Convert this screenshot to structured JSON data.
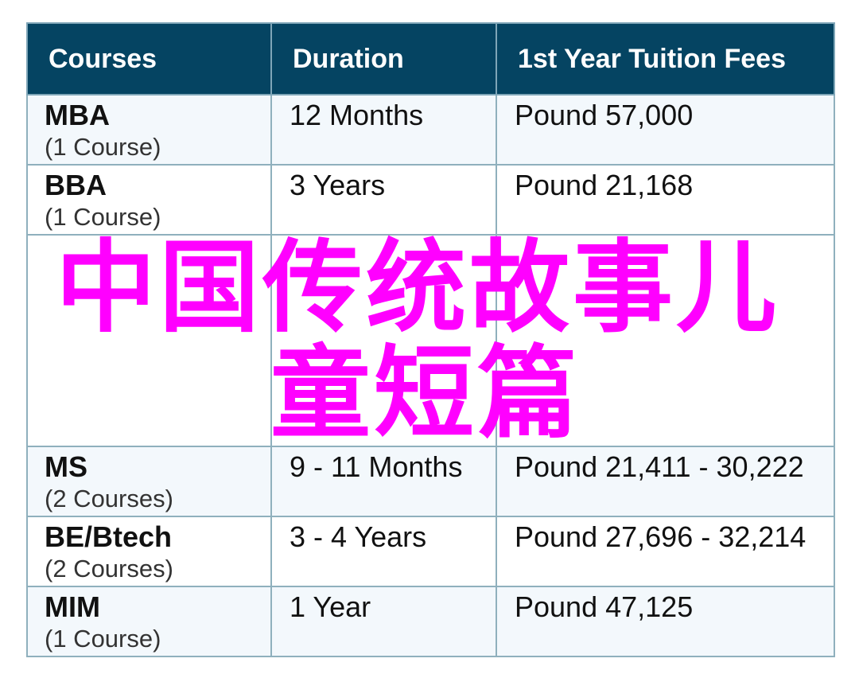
{
  "table": {
    "headers": [
      "Courses",
      "Duration",
      "1st Year Tuition Fees"
    ],
    "rows": [
      {
        "course": "MBA",
        "count": "(1 Course)",
        "duration": "12 Months",
        "fees": "Pound 57,000"
      },
      {
        "course": "BBA",
        "count": "(1 Course)",
        "duration": "3 Years",
        "fees": "Pound 21,168"
      },
      {
        "course": "MS",
        "count": "(2 Courses)",
        "duration": "9 - 11 Months",
        "fees": "Pound 21,411 - 30,222"
      },
      {
        "course": "BE/Btech",
        "count": "(2 Courses)",
        "duration": "3 - 4 Years",
        "fees": "Pound 27,696 - 32,214"
      },
      {
        "course": "MIM",
        "count": "(1 Course)",
        "duration": "1 Year",
        "fees": "Pound 47,125"
      }
    ]
  },
  "overlay": {
    "line1": "中国传统故事儿",
    "line2": "童短篇",
    "color": "#ff00ff"
  },
  "colors": {
    "header_bg": "#054462",
    "row_light": "#f3f8fc",
    "border": "#8fb0bd"
  }
}
